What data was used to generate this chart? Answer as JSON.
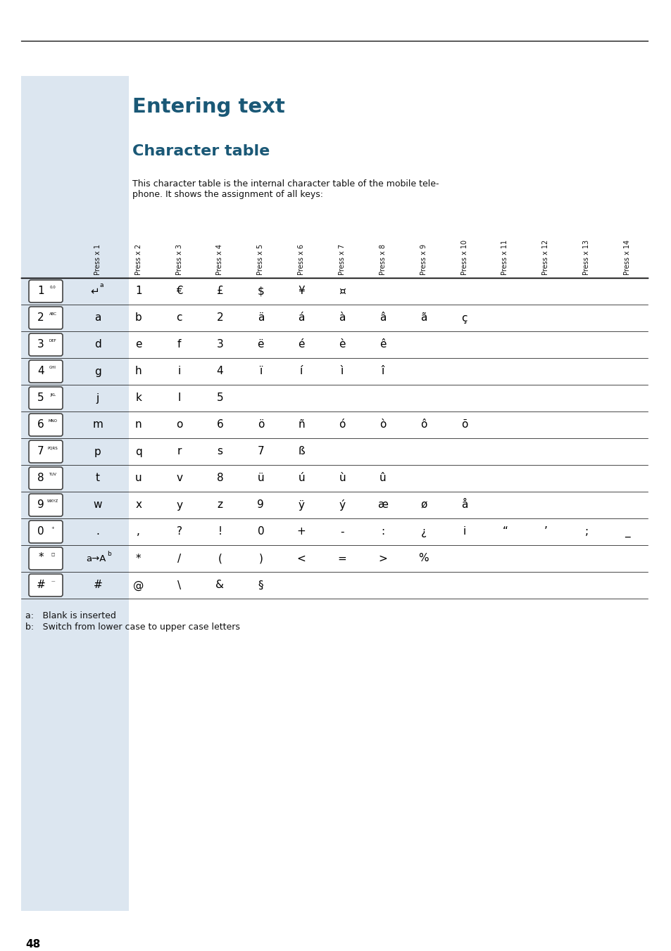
{
  "title": "Entering text",
  "subtitle": "Character table",
  "description_line1": "This character table is the internal character table of the mobile tele-",
  "description_line2": "phone. It shows the assignment of all keys:",
  "title_color": "#1a5876",
  "bg_color": "#ffffff",
  "sidebar_color": "#dce6f0",
  "page_number": "48",
  "col_headers": [
    "Press x 1",
    "Press x 2",
    "Press x 3",
    "Press x 4",
    "Press x 5",
    "Press x 6",
    "Press x 7",
    "Press x 8",
    "Press x 9",
    "Press x 10",
    "Press x 11",
    "Press x 12",
    "Press x 13",
    "Press x 14"
  ],
  "key_main": [
    "1",
    "2",
    "3",
    "4",
    "5",
    "6",
    "7",
    "8",
    "9",
    "0",
    "*",
    "#"
  ],
  "key_sub": [
    "0.0",
    "ABC",
    "DEF",
    "GHI",
    "JKL",
    "MNO",
    "PQRS",
    "TUV",
    "WXYZ",
    "+",
    "□",
    "—"
  ],
  "table_data": [
    [
      "↵",
      "1",
      "€",
      "£",
      "$",
      "¥",
      "¤",
      "",
      "",
      "",
      "",
      "",
      "",
      ""
    ],
    [
      "a",
      "b",
      "c",
      "2",
      "ä",
      "á",
      "à",
      "â",
      "ã",
      "ç",
      "",
      "",
      "",
      ""
    ],
    [
      "d",
      "e",
      "f",
      "3",
      "ë",
      "é",
      "è",
      "ê",
      "",
      "",
      "",
      "",
      "",
      ""
    ],
    [
      "g",
      "h",
      "i",
      "4",
      "ï",
      "í",
      "ì",
      "î",
      "",
      "",
      "",
      "",
      "",
      ""
    ],
    [
      "j",
      "k",
      "l",
      "5",
      "",
      "",
      "",
      "",
      "",
      "",
      "",
      "",
      "",
      ""
    ],
    [
      "m",
      "n",
      "o",
      "6",
      "ö",
      "ñ",
      "ó",
      "ò",
      "ô",
      "õ",
      "",
      "",
      "",
      ""
    ],
    [
      "p",
      "q",
      "r",
      "s",
      "7",
      "ß",
      "",
      "",
      "",
      "",
      "",
      "",
      "",
      ""
    ],
    [
      "t",
      "u",
      "v",
      "8",
      "ü",
      "ú",
      "ù",
      "û",
      "",
      "",
      "",
      "",
      "",
      ""
    ],
    [
      "w",
      "x",
      "y",
      "z",
      "9",
      "ÿ",
      "ý",
      "æ",
      "ø",
      "å",
      "",
      "",
      "",
      ""
    ],
    [
      ".",
      ",",
      "?",
      "!",
      "0",
      "+",
      "-",
      ":",
      "¿",
      "i",
      "“",
      "’",
      ";",
      "_"
    ],
    [
      "a→A",
      "*",
      "/",
      "(",
      ")",
      "<",
      "=",
      ">",
      "%",
      "",
      "",
      "",
      "",
      ""
    ],
    [
      "#",
      "@",
      "\\",
      "&",
      "§",
      "",
      "",
      "",
      "",
      "",
      "",
      "",
      "",
      ""
    ]
  ],
  "footnote_a": "a: Blank is inserted",
  "footnote_b": "b: Switch from lower case to upper case letters"
}
